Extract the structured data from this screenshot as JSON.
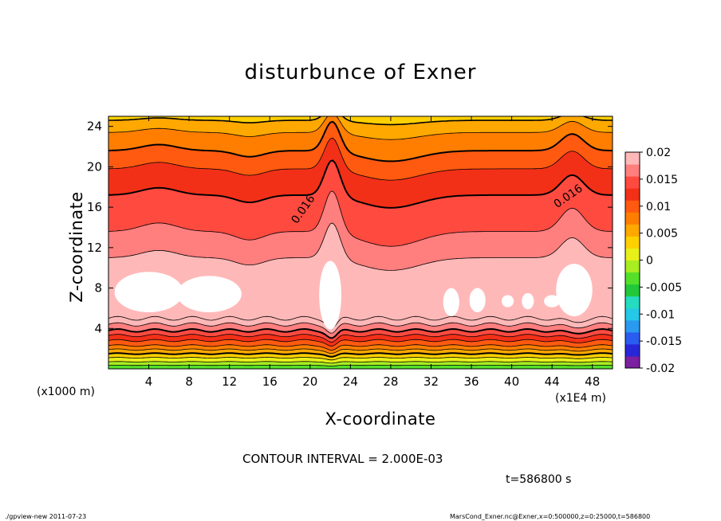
{
  "chart_data": {
    "type": "heatmap",
    "title": "disturbunce of Exner",
    "xlabel": "X-coordinate",
    "ylabel": "Z-coordinate",
    "x_unit_label": "(x1000 m)",
    "x_scale_label": "(x1E4 m)",
    "xlim": [
      0,
      50
    ],
    "ylim": [
      0,
      25
    ],
    "x_ticks": [
      4,
      8,
      12,
      16,
      20,
      24,
      28,
      32,
      36,
      40,
      44,
      48
    ],
    "y_ticks": [
      4,
      8,
      12,
      16,
      20,
      24
    ],
    "colorbar": {
      "levels": [
        -0.02,
        -0.015,
        -0.01,
        -0.005,
        0,
        0.005,
        0.01,
        0.015,
        0.02
      ],
      "labels": [
        "0.02",
        "0.015",
        "0.01",
        "0.005",
        "0",
        "-0.005",
        "-0.01",
        "-0.015",
        "-0.02"
      ],
      "colors": [
        "#7c1fa0",
        "#2727d8",
        "#2a5cf0",
        "#2a9af0",
        "#26c8e8",
        "#26dcc0",
        "#22c83a",
        "#54e02a",
        "#a8ec22",
        "#e8f01a",
        "#ffd000",
        "#ffa800",
        "#ff7e00",
        "#ff5a10",
        "#f23018",
        "#ff4a40",
        "#ff7e7e",
        "#ffb8b8"
      ]
    },
    "contour_labels": [
      "0.016",
      "0.016"
    ],
    "contour_interval": "CONTOUR INTERVAL = 2.000E-03",
    "time": "t=586800 s"
  },
  "footer": {
    "left": "./gpview-new   2011-07-23",
    "right": "MarsCond_Exner.nc@Exner,x=0:500000,z=0:25000,t=586800"
  }
}
